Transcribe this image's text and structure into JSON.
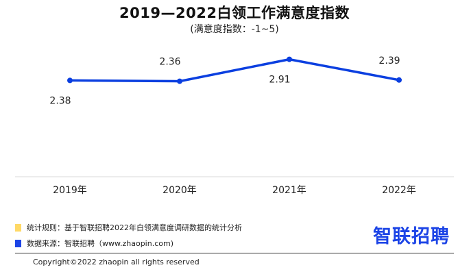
{
  "chart_data": {
    "type": "line",
    "title": "2019—2022白领工作满意度指数",
    "subtitle": "(满意度指数：-1~5)",
    "categories": [
      "2019年",
      "2020年",
      "2021年",
      "2022年"
    ],
    "series": [
      {
        "values": [
          2.38,
          2.36,
          2.91,
          2.39
        ],
        "color": "#0b3fe0"
      }
    ],
    "data_labels": [
      "2.38",
      "2.36",
      "2.91",
      "2.39"
    ],
    "label_position": [
      "below",
      "above",
      "below",
      "above"
    ],
    "grid": false,
    "legend": "none"
  },
  "notes": [
    {
      "text": "统计规则：基于智联招聘2022年白领满意度调研数据的统计分析",
      "color": "#ffd966"
    },
    {
      "text": "数据来源：智联招聘（www.zhaopin.com)",
      "color": "#1c44e6"
    }
  ],
  "logo": {
    "text": "智联招聘",
    "color": "#1c44e6"
  },
  "copyright": "Copyright©2022 zhaopin all rights reserved"
}
